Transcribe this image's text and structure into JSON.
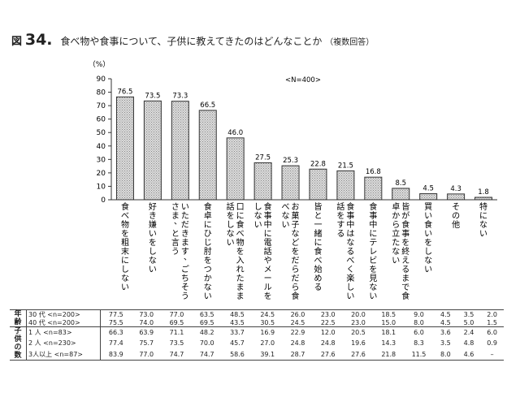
{
  "figure": {
    "prefix": "図",
    "number": "34.",
    "title": "食べ物や食事について、子供に教えてきたのはどんなことか",
    "note": "（複数回答）"
  },
  "chart_data": {
    "type": "bar",
    "ylabel": "（%）",
    "ylim": [
      0,
      90
    ],
    "yticks": [
      0,
      10,
      20,
      30,
      40,
      50,
      60,
      70,
      80,
      90
    ],
    "annotation": "<N=400>",
    "categories": [
      "食べ物を粗末にしない",
      "好き嫌いをしない",
      "いただきます、ごちそうさま、と言う",
      "食卓にひじ肘をつかない",
      "口に食べ物を入れたまま話をしない",
      "食事中に電話やメールをしない",
      "お菓子などをだらだら食べない",
      "皆と一緒に食べ始める",
      "食事中はなるべく楽しい話をする",
      "食事中にテレビを見ない",
      "皆が食事を終えるまで食卓から立たない",
      "買い食いをしない",
      "その他",
      "特にない"
    ],
    "category_columns": [
      [
        "食べ物を粗末にしない"
      ],
      [
        "好き嫌いをしない"
      ],
      [
        "いただきます、ごちそう",
        "さま、と言う"
      ],
      [
        "食卓にひじ肘をつかない"
      ],
      [
        "口に食べ物を入れたまま",
        "話をしない"
      ],
      [
        "食事中に電話やメールを",
        "しない"
      ],
      [
        "お菓子などをだらだら食",
        "べない"
      ],
      [
        "皆と一緒に食べ始める"
      ],
      [
        "食事中はなるべく楽しい",
        "話をする"
      ],
      [
        "食事中にテレビを見ない"
      ],
      [
        "皆が食事を終えるまで食",
        "卓から立たない"
      ],
      [
        "買い食いをしない"
      ],
      [
        "その他"
      ],
      [
        "特にない"
      ]
    ],
    "values": [
      76.5,
      73.5,
      73.3,
      66.5,
      46.0,
      27.5,
      25.3,
      22.8,
      21.5,
      16.8,
      8.5,
      4.5,
      4.3,
      1.8
    ],
    "value_labels": [
      "76.5",
      "73.5",
      "73.3",
      "66.5",
      "46.0",
      "27.5",
      "25.3",
      "22.8",
      "21.5",
      "16.8",
      "8.5",
      "4.5",
      "4.3",
      "1.8"
    ],
    "colors": {
      "bar_fill": "#dcdcdc",
      "bar_hatch": "#8a8a8a",
      "bar_stroke": "#333333"
    }
  },
  "table": {
    "groups": [
      {
        "label": "年齢",
        "rows": [
          {
            "label": "30 代 <n=200>",
            "values": [
              "77.5",
              "73.0",
              "77.0",
              "63.5",
              "48.5",
              "24.5",
              "26.0",
              "23.0",
              "20.0",
              "18.5",
              "9.0",
              "4.5",
              "3.5",
              "2.0"
            ]
          },
          {
            "label": "40 代 <n=200>",
            "values": [
              "75.5",
              "74.0",
              "69.5",
              "69.5",
              "43.5",
              "30.5",
              "24.5",
              "22.5",
              "23.0",
              "15.0",
              "8.0",
              "4.5",
              "5.0",
              "1.5"
            ]
          }
        ]
      },
      {
        "label": "子供の数",
        "rows": [
          {
            "label": "1 人 <n=83>",
            "values": [
              "66.3",
              "63.9",
              "71.1",
              "48.2",
              "33.7",
              "16.9",
              "22.9",
              "12.0",
              "20.5",
              "18.1",
              "6.0",
              "3.6",
              "2.4",
              "6.0"
            ]
          },
          {
            "label": "2 人 <n=230>",
            "values": [
              "77.4",
              "75.7",
              "73.5",
              "70.0",
              "45.7",
              "27.0",
              "24.8",
              "24.8",
              "19.6",
              "14.3",
              "8.3",
              "3.5",
              "4.8",
              "0.9"
            ]
          },
          {
            "label": "3人以上 <n=87>",
            "values": [
              "83.9",
              "77.0",
              "74.7",
              "74.7",
              "58.6",
              "39.1",
              "28.7",
              "27.6",
              "27.6",
              "21.8",
              "11.5",
              "8.0",
              "4.6",
              "–"
            ]
          }
        ]
      }
    ]
  }
}
